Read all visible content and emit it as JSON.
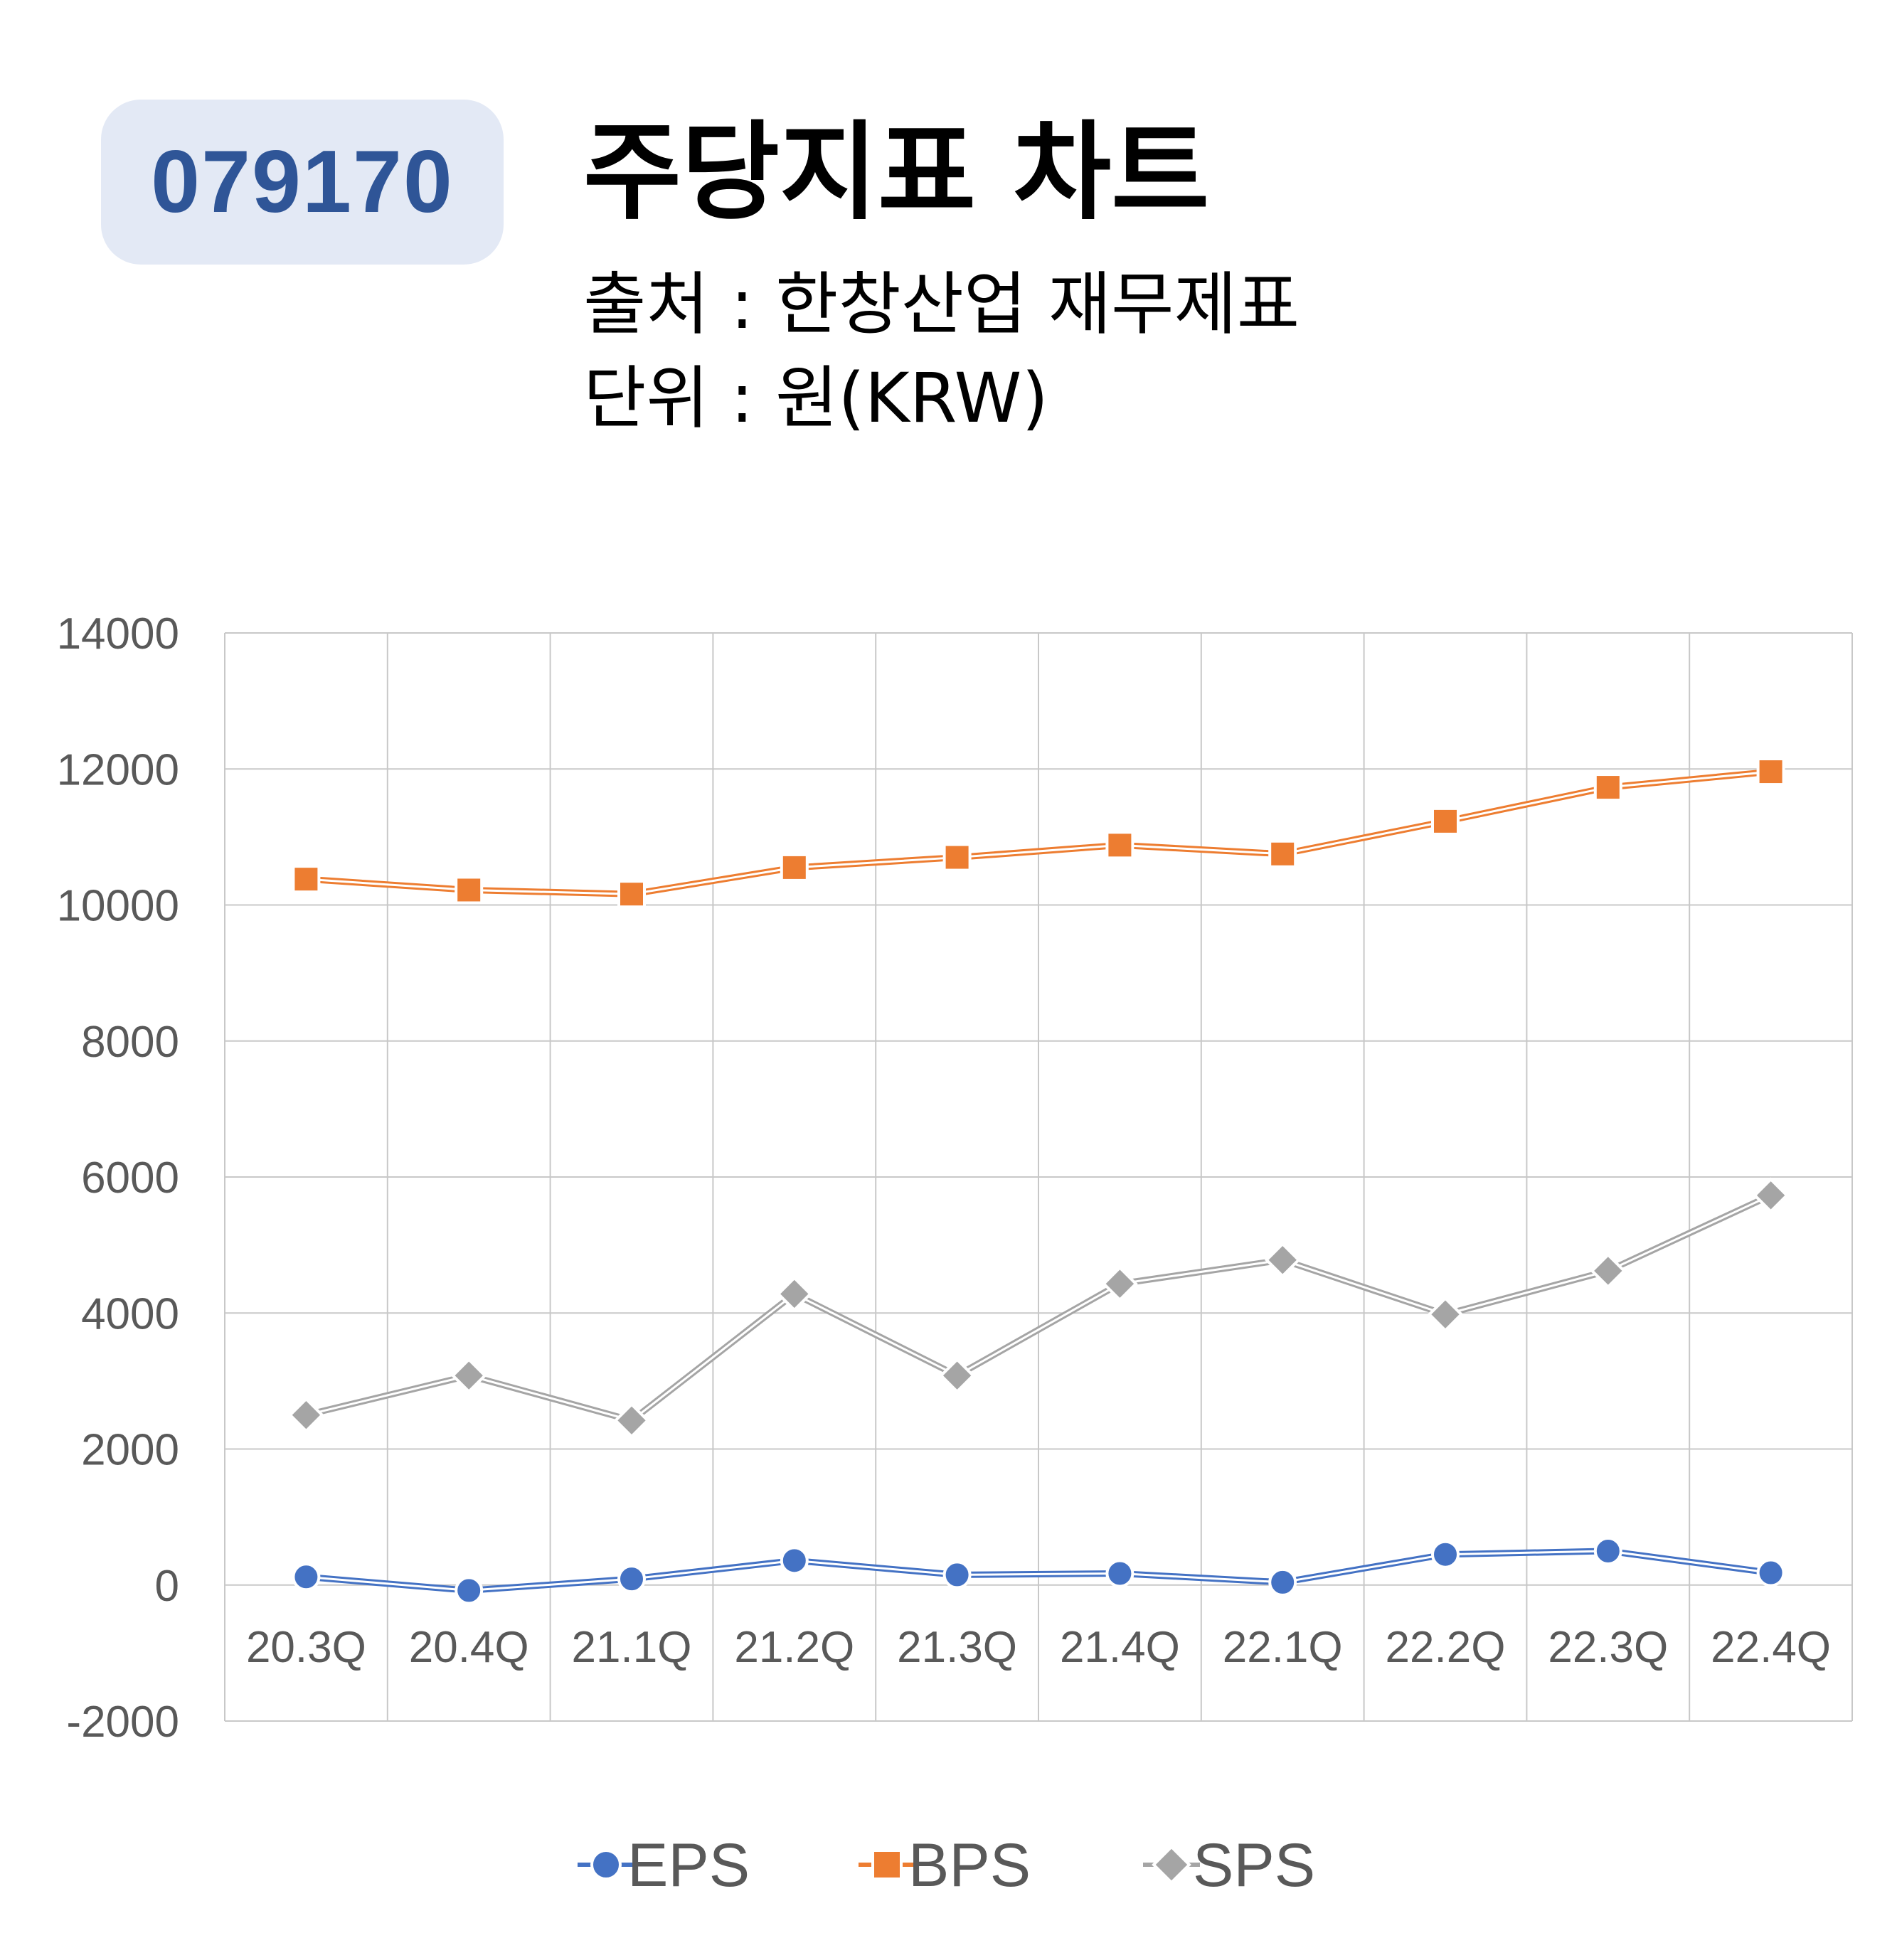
{
  "header": {
    "code": "079170",
    "title": "주당지표 차트",
    "source": "출처 : 한창산업 재무제표",
    "unit": "단위 : 원(KRW)"
  },
  "chart_data": {
    "type": "line",
    "categories": [
      "20.3Q",
      "20.4Q",
      "21.1Q",
      "21.2Q",
      "21.3Q",
      "21.4Q",
      "22.1Q",
      "22.2Q",
      "22.3Q",
      "22.4Q"
    ],
    "ylim": [
      -2000,
      14000
    ],
    "yticks": [
      -2000,
      0,
      2000,
      4000,
      6000,
      8000,
      10000,
      12000,
      14000
    ],
    "grid": true,
    "legend": "bottom",
    "series": [
      {
        "name": "EPS",
        "color": "#4472c4",
        "marker": "circle",
        "values": [
          120,
          -80,
          90,
          360,
          150,
          170,
          40,
          450,
          500,
          180
        ]
      },
      {
        "name": "BPS",
        "color": "#ed7d31",
        "marker": "square",
        "values": [
          10380,
          10220,
          10160,
          10550,
          10700,
          10880,
          10750,
          11230,
          11730,
          11960
        ]
      },
      {
        "name": "SPS",
        "color": "#a5a5a5",
        "marker": "diamond",
        "values": [
          2500,
          3080,
          2420,
          4280,
          3080,
          4430,
          4780,
          3980,
          4620,
          5730
        ]
      }
    ]
  }
}
